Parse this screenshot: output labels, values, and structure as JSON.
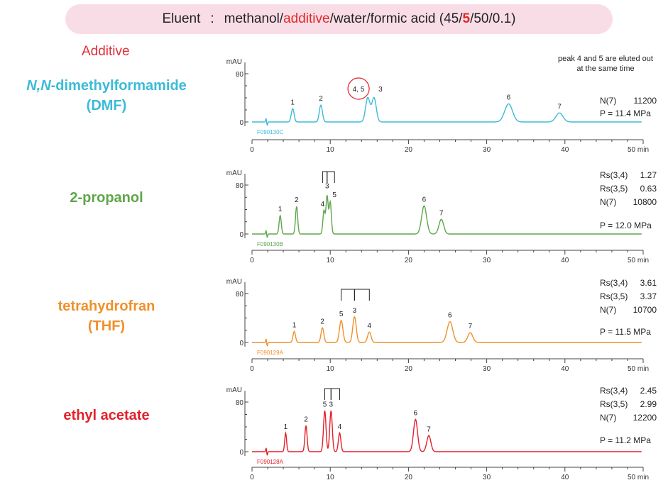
{
  "banner": {
    "eluent_label": "Eluent",
    "colon": ":",
    "prefix": "methanol/",
    "additive_word": "additive",
    "middle": "/water/formic acid (45/",
    "highlight_number": "5",
    "suffix": "/50/0.1)"
  },
  "additive_header": "Additive",
  "colors": {
    "dmf": "#3bbbd8",
    "propanol": "#5ea64a",
    "thf": "#f0902a",
    "ethyl_acetate": "#e4202a",
    "header_red": "#e0303a",
    "banner_bg": "#f9dde6"
  },
  "labels": {
    "dmf_line1_italic": "N,N",
    "dmf_line1_rest": "-dimethylformamide",
    "dmf_line2": "(DMF)",
    "propanol": "2-propanol",
    "thf_line1": "tetrahydrofran",
    "thf_line2": "(THF)",
    "ethyl_acetate": "ethyl acetate"
  },
  "chart_data": [
    {
      "type": "line",
      "name": "DMF",
      "code": "F090130C",
      "ylabel": "mAU",
      "xunit": "min",
      "xlim": [
        0,
        50
      ],
      "ylim": [
        0,
        80
      ],
      "xticks": [
        0,
        10,
        20,
        30,
        40,
        50
      ],
      "yticks": [
        0,
        80
      ],
      "peaks": [
        {
          "label": "1",
          "time": 5.2,
          "height": 22,
          "width": 0.18
        },
        {
          "label": "2",
          "time": 8.8,
          "height": 28,
          "width": 0.2
        },
        {
          "label": "4, 5",
          "time": 14.8,
          "height": 40,
          "width": 0.28
        },
        {
          "label": "3",
          "time": 15.6,
          "height": 40,
          "width": 0.28
        },
        {
          "label": "6",
          "time": 32.8,
          "height": 30,
          "width": 0.5
        },
        {
          "label": "7",
          "time": 39.3,
          "height": 15,
          "width": 0.45
        }
      ],
      "note_lines": [
        "peak 4 and 5 are eluted out",
        "at the same time"
      ],
      "stats": [
        [
          "N(7)",
          "11200"
        ],
        [
          "P = 11.4 MPa",
          ""
        ]
      ]
    },
    {
      "type": "line",
      "name": "2-propanol",
      "code": "F090130B",
      "ylabel": "mAU",
      "xunit": "min",
      "xlim": [
        0,
        50
      ],
      "ylim": [
        0,
        80
      ],
      "xticks": [
        0,
        10,
        20,
        30,
        40,
        50
      ],
      "yticks": [
        0,
        80
      ],
      "peaks": [
        {
          "label": "1",
          "time": 3.6,
          "height": 30,
          "width": 0.14
        },
        {
          "label": "2",
          "time": 5.7,
          "height": 45,
          "width": 0.14
        },
        {
          "label": "4",
          "time": 9.2,
          "height": 38,
          "width": 0.14
        },
        {
          "label": "3",
          "time": 9.6,
          "height": 62,
          "width": 0.14
        },
        {
          "label": "5",
          "time": 10.0,
          "height": 52,
          "width": 0.14
        },
        {
          "label": "6",
          "time": 22.0,
          "height": 46,
          "width": 0.32
        },
        {
          "label": "7",
          "time": 24.2,
          "height": 24,
          "width": 0.3
        }
      ],
      "stats": [
        [
          "Rs(3,4)",
          "1.27"
        ],
        [
          "Rs(3,5)",
          "0.63"
        ],
        [
          "N(7)",
          "10800"
        ],
        [
          "P = 12.0 MPa",
          ""
        ]
      ]
    },
    {
      "type": "line",
      "name": "THF",
      "code": "F090129A",
      "ylabel": "mAU",
      "xunit": "min",
      "xlim": [
        0,
        50
      ],
      "ylim": [
        0,
        80
      ],
      "xticks": [
        0,
        10,
        20,
        30,
        40,
        50
      ],
      "yticks": [
        0,
        80
      ],
      "peaks": [
        {
          "label": "1",
          "time": 5.4,
          "height": 18,
          "width": 0.16
        },
        {
          "label": "2",
          "time": 9.0,
          "height": 24,
          "width": 0.18
        },
        {
          "label": "5",
          "time": 11.4,
          "height": 36,
          "width": 0.22
        },
        {
          "label": "3",
          "time": 13.1,
          "height": 42,
          "width": 0.22
        },
        {
          "label": "4",
          "time": 15.0,
          "height": 17,
          "width": 0.22
        },
        {
          "label": "6",
          "time": 25.3,
          "height": 34,
          "width": 0.36
        },
        {
          "label": "7",
          "time": 27.9,
          "height": 16,
          "width": 0.32
        }
      ],
      "stats": [
        [
          "Rs(3,4)",
          "3.61"
        ],
        [
          "Rs(3,5)",
          "3.37"
        ],
        [
          "N(7)",
          "10700"
        ],
        [
          "P = 11.5 MPa",
          ""
        ]
      ]
    },
    {
      "type": "line",
      "name": "ethyl acetate",
      "code": "F090128A",
      "ylabel": "mAU",
      "xunit": "min",
      "xlim": [
        0,
        50
      ],
      "ylim": [
        0,
        80
      ],
      "xticks": [
        0,
        10,
        20,
        30,
        40,
        50
      ],
      "yticks": [
        0,
        80
      ],
      "peaks": [
        {
          "label": "1",
          "time": 4.3,
          "height": 30,
          "width": 0.12
        },
        {
          "label": "2",
          "time": 6.9,
          "height": 42,
          "width": 0.14
        },
        {
          "label": "5",
          "time": 9.3,
          "height": 66,
          "width": 0.16
        },
        {
          "label": "3",
          "time": 10.1,
          "height": 66,
          "width": 0.16
        },
        {
          "label": "4",
          "time": 11.2,
          "height": 30,
          "width": 0.16
        },
        {
          "label": "6",
          "time": 20.9,
          "height": 52,
          "width": 0.26
        },
        {
          "label": "7",
          "time": 22.6,
          "height": 26,
          "width": 0.26
        }
      ],
      "stats": [
        [
          "Rs(3,4)",
          "2.45"
        ],
        [
          "Rs(3,5)",
          "2.99"
        ],
        [
          "N(7)",
          "12200"
        ],
        [
          "P = 11.2 MPa",
          ""
        ]
      ]
    }
  ]
}
